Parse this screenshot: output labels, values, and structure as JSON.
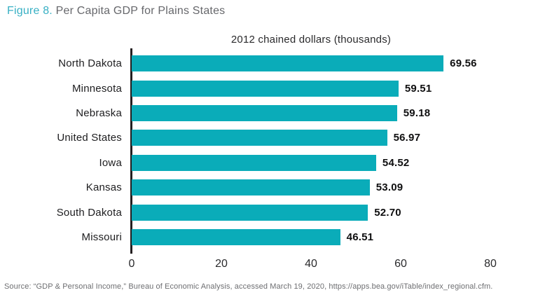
{
  "header": {
    "figure_label": "Figure 8.",
    "title": " Per Capita GDP for Plains States"
  },
  "chart_data": {
    "type": "bar",
    "orientation": "horizontal",
    "title": "2012 chained dollars (thousands)",
    "categories": [
      "North Dakota",
      "Minnesota",
      "Nebraska",
      "United States",
      "Iowa",
      "Kansas",
      "South Dakota",
      "Missouri"
    ],
    "values": [
      69.56,
      59.51,
      59.18,
      56.97,
      54.52,
      53.09,
      52.7,
      46.51
    ],
    "value_labels": [
      "69.56",
      "59.51",
      "59.18",
      "56.97",
      "54.52",
      "53.09",
      "52.70",
      "46.51"
    ],
    "xlabel": "",
    "ylabel": "",
    "xlim": [
      0,
      80
    ],
    "x_ticks": [
      0,
      20,
      40,
      60,
      80
    ],
    "bar_color": "#0aacb9",
    "axis_color": "#231f20",
    "grid": false,
    "legend": false
  },
  "footer": {
    "source": "Source: “GDP & Personal Income,” Bureau of Economic Analysis, accessed March 19, 2020, https://apps.bea.gov/iTable/index_regional.cfm."
  }
}
